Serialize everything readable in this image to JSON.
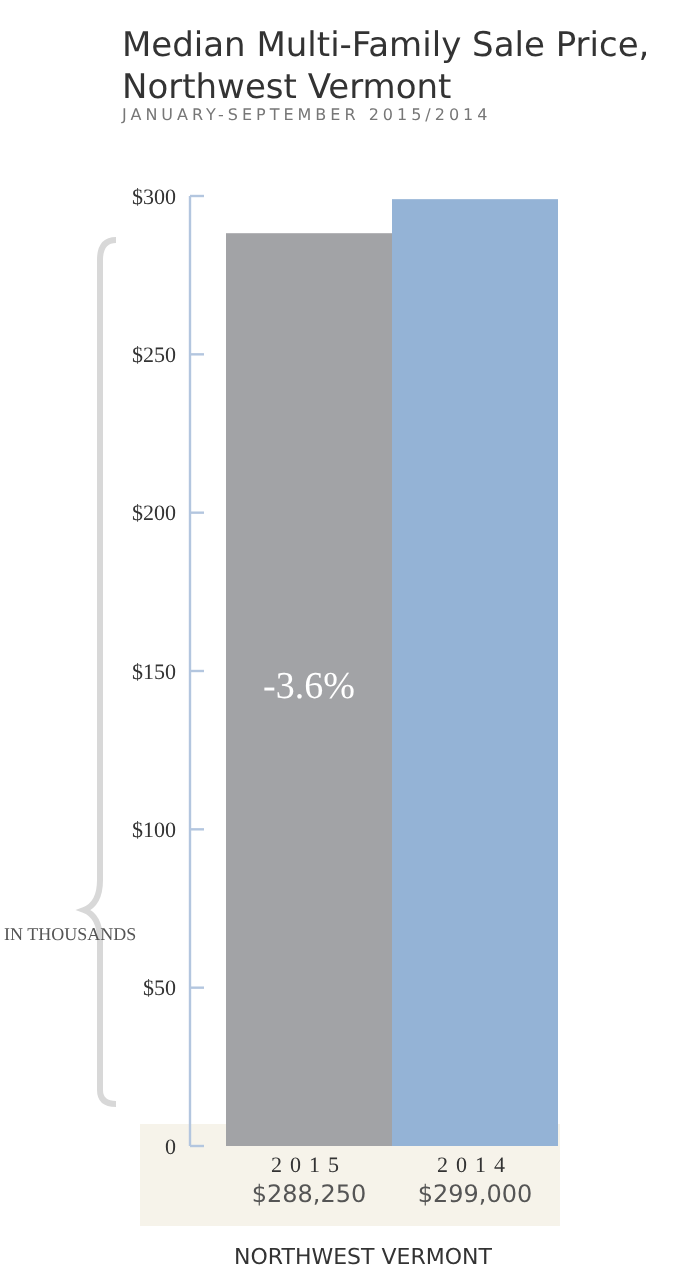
{
  "chart_data": {
    "type": "bar",
    "title": "Median Multi-Family Sale Price, Northwest Vermont",
    "subtitle": "JANUARY-SEPTEMBER 2015/2014",
    "xlabel": "NORTHWEST VERMONT",
    "ylabel": "IN THOUSANDS",
    "categories": [
      "2015",
      "2014"
    ],
    "values": [
      288.25,
      299
    ],
    "colors": [
      "#a2a3a6",
      "#94b3d6"
    ],
    "annotations": [
      "-3.6%",
      "$288,250",
      "$299,000"
    ],
    "ylim": [
      0,
      300
    ],
    "yticks": [
      0,
      {
        "value": 50,
        "label": "$50"
      },
      {
        "value": 100,
        "label": "$100"
      },
      {
        "value": 150,
        "label": "$150"
      },
      {
        "value": 200,
        "label": "$200"
      },
      {
        "value": 250,
        "label": "$250"
      },
      {
        "value": 300,
        "label": "$300"
      }
    ],
    "grid": false
  }
}
